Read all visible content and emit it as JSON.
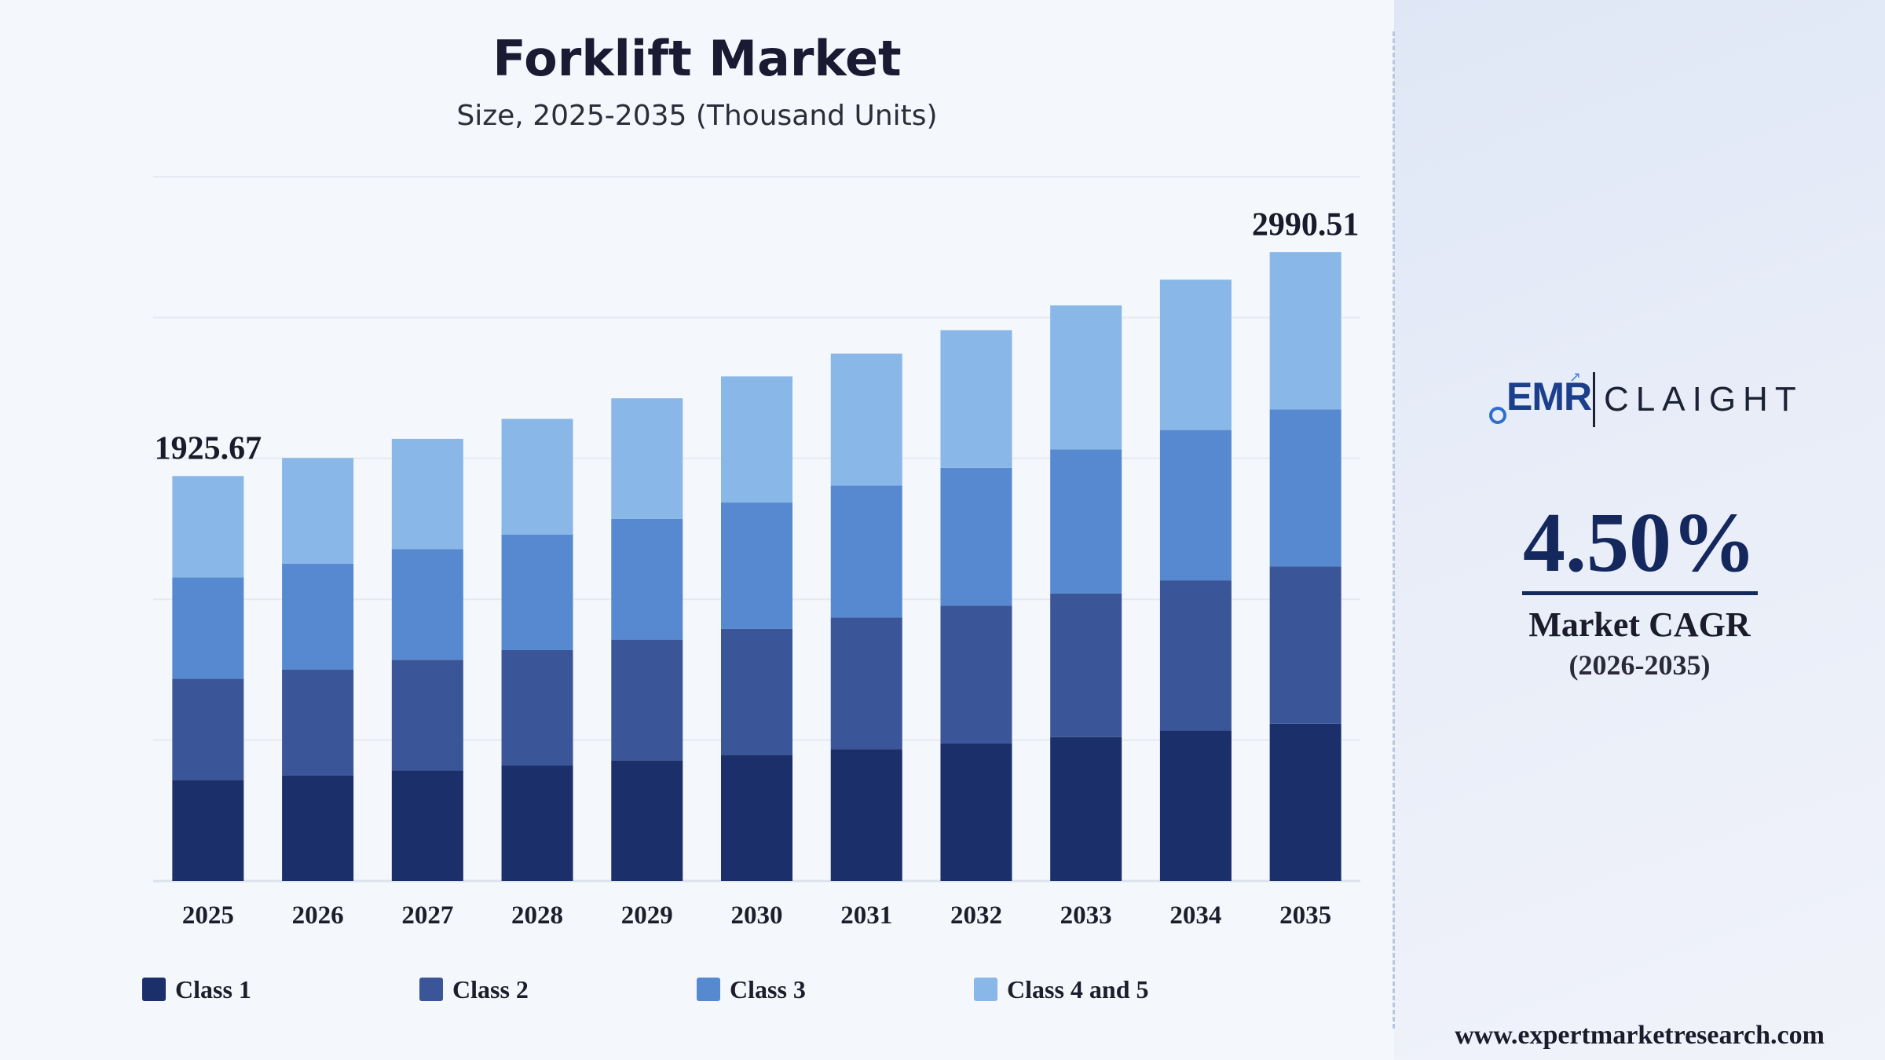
{
  "chart_data": {
    "type": "bar",
    "stacked": true,
    "title": "Forklift Market",
    "subtitle": "Size, 2025-2035 (Thousand Units)",
    "categories": [
      "2025",
      "2026",
      "2027",
      "2028",
      "2029",
      "2030",
      "2031",
      "2032",
      "2033",
      "2034",
      "2035"
    ],
    "series": [
      {
        "name": "Class 1",
        "color": "#1b2f6b",
        "values": [
          481,
          503,
          526,
          549,
          574,
          600,
          627,
          655,
          684,
          715,
          748
        ]
      },
      {
        "name": "Class 2",
        "color": "#3b5698",
        "values": [
          481,
          503,
          526,
          549,
          574,
          600,
          627,
          655,
          684,
          715,
          748
        ]
      },
      {
        "name": "Class 3",
        "color": "#5789d1",
        "values": [
          482,
          503,
          526,
          550,
          574,
          600,
          627,
          655,
          685,
          715,
          747
        ]
      },
      {
        "name": "Class 4 and 5",
        "color": "#89b7e8",
        "values": [
          482,
          503,
          525,
          550,
          574,
          600,
          627,
          655,
          685,
          715,
          748
        ]
      }
    ],
    "totals": [
      1925.67,
      2012,
      2103,
      2198,
      2296,
      2400,
      2508,
      2620,
      2738,
      2860,
      2990.51
    ],
    "data_labels": [
      {
        "category": "2025",
        "text": "1925.67"
      },
      {
        "category": "2035",
        "text": "2990.51"
      }
    ],
    "ylim": [
      0,
      3350
    ],
    "grid": true,
    "legend_position": "bottom"
  },
  "legend": {
    "items": [
      {
        "label": "Class 1",
        "color": "#1b2f6b"
      },
      {
        "label": "Class 2",
        "color": "#3b5698"
      },
      {
        "label": "Class 3",
        "color": "#5789d1"
      },
      {
        "label": "Class 4 and 5",
        "color": "#89b7e8"
      }
    ]
  },
  "sidebar": {
    "logo": {
      "left": "EMR",
      "right": "CLAIGHT"
    },
    "cagr_value": "4.50%",
    "cagr_label": "Market CAGR",
    "cagr_period": "(2026-2035)",
    "website": "www.expertmarketresearch.com"
  }
}
